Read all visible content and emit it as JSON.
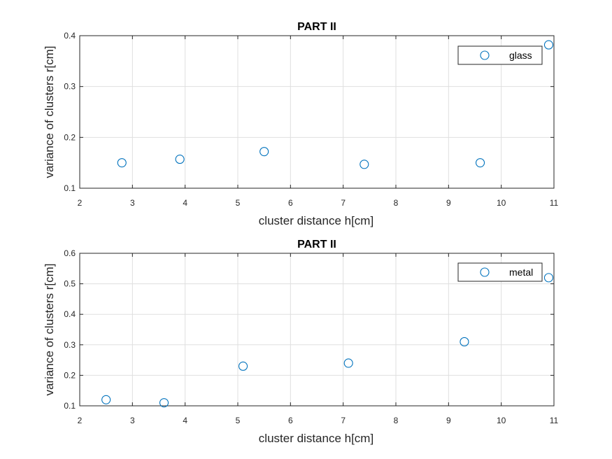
{
  "chart_data": [
    {
      "type": "scatter",
      "title": "PART II",
      "xlabel": "cluster distance h[cm]",
      "ylabel": "variance of clusters r[cm]",
      "xlim": [
        2,
        11
      ],
      "ylim": [
        0.1,
        0.4
      ],
      "xticks": [
        "2",
        "3",
        "4",
        "5",
        "6",
        "7",
        "8",
        "9",
        "10",
        "11"
      ],
      "yticks": [
        "0.1",
        "0.2",
        "0.3",
        "0.4"
      ],
      "grid": true,
      "legend_position": "top-right",
      "series": [
        {
          "name": "glass",
          "color": "#0072BD",
          "marker": "circle-open",
          "x": [
            2.8,
            3.9,
            5.5,
            7.4,
            9.6,
            10.9
          ],
          "y": [
            0.15,
            0.157,
            0.172,
            0.147,
            0.15,
            0.382
          ]
        }
      ]
    },
    {
      "type": "scatter",
      "title": "PART II",
      "xlabel": "cluster distance h[cm]",
      "ylabel": "variance of clusters r[cm]",
      "xlim": [
        2,
        11
      ],
      "ylim": [
        0.1,
        0.6
      ],
      "xticks": [
        "2",
        "3",
        "4",
        "5",
        "6",
        "7",
        "8",
        "9",
        "10",
        "11"
      ],
      "yticks": [
        "0.1",
        "0.2",
        "0.3",
        "0.4",
        "0.5",
        "0.6"
      ],
      "grid": true,
      "legend_position": "top-right",
      "series": [
        {
          "name": "metal",
          "color": "#0072BD",
          "marker": "circle-open",
          "x": [
            2.5,
            3.6,
            5.1,
            7.1,
            9.3,
            10.9
          ],
          "y": [
            0.12,
            0.11,
            0.23,
            0.24,
            0.31,
            0.52
          ]
        }
      ]
    }
  ]
}
